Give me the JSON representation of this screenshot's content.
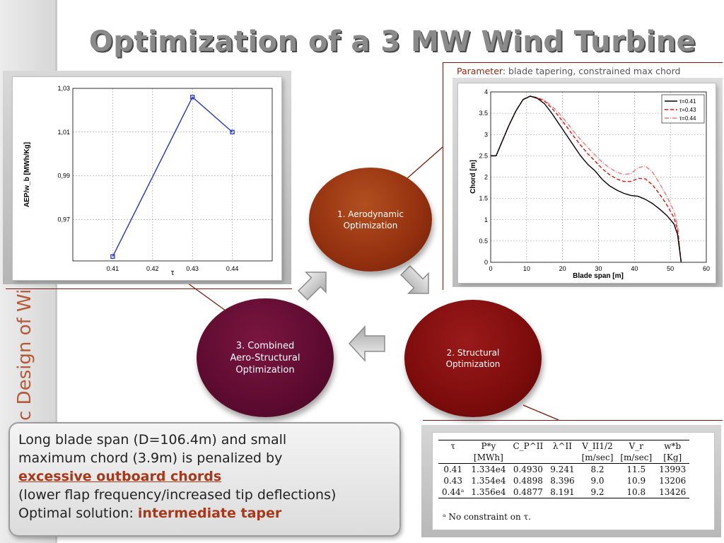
{
  "slide": {
    "title": "Optimization of a 3 MW Wind Turbine",
    "sidebar_text": "c Design of Wi",
    "parameter_label": "Parameter",
    "parameter_text": ": blade tapering, constrained max chord",
    "steps": [
      {
        "line1": "1. Aerodynamic",
        "line2": "Optimization",
        "line3": ""
      },
      {
        "line1": "2. Structural",
        "line2": "Optimization",
        "line3": ""
      },
      {
        "line1": "3. Combined",
        "line2": "Aero-Structural",
        "line3": "Optimization"
      }
    ],
    "textbox": {
      "line1": "Long blade span (D=106.4m) and small",
      "line2": "maximum chord (3.9m) is penalized by",
      "line3": "excessive outboard chords",
      "line4": "(lower flap frequency/increased tip deflections)",
      "line5_prefix": "Optimal solution: ",
      "line5_highlight": "intermediate taper"
    },
    "colors": {
      "title": "#8a8a8a",
      "accent": "#a8381a",
      "step1": "#93300f",
      "step2": "#7d0c0c",
      "step3": "#5e0b30"
    }
  },
  "table": {
    "headers": [
      "τ",
      "P*y",
      "C_P^II",
      "λ^II",
      "V_II1/2",
      "V_r",
      "w*b"
    ],
    "units": [
      "",
      "[MWh]",
      "",
      "",
      "[m/sec]",
      "[m/sec]",
      "[Kg]"
    ],
    "rows": [
      [
        "0.41",
        "1.334e4",
        "0.4930",
        "9.241",
        "8.2",
        "11.5",
        "13993"
      ],
      [
        "0.43",
        "1.354e4",
        "0.4898",
        "8.396",
        "9.0",
        "10.9",
        "13206"
      ],
      [
        "0.44ᵃ",
        "1.356e4",
        "0.4877",
        "8.191",
        "9.2",
        "10.8",
        "13426"
      ]
    ],
    "footnote": "ᵃ No constraint on τ."
  },
  "chart_data": [
    {
      "type": "line",
      "xlabel": "τ",
      "ylabel": "AEP/w_b [MWh/Kg]",
      "x": [
        0.41,
        0.43,
        0.44
      ],
      "xticks": [
        "0.41",
        "0.42",
        "0.43",
        "0.44"
      ],
      "yticks": [
        "0,97",
        "0,99",
        "1,01",
        "1,03"
      ],
      "xlim": [
        0.4,
        0.45
      ],
      "ylim": [
        0.951,
        1.03
      ],
      "grid": true,
      "series": [
        {
          "values": [
            0.953,
            1.026,
            1.01
          ],
          "color": "#2233cc"
        }
      ]
    },
    {
      "type": "line",
      "xlabel": "Blade span [m]",
      "ylabel": "Chord [m]",
      "xlim": [
        0,
        60
      ],
      "ylim": [
        0,
        4
      ],
      "xticks": [
        "0",
        "10",
        "20",
        "30",
        "40",
        "50",
        "60"
      ],
      "yticks": [
        "0",
        "0.5",
        "1",
        "1.5",
        "2",
        "2.5",
        "3",
        "3.5",
        "4"
      ],
      "grid": true,
      "legend": "top-right",
      "x": [
        0,
        1.5,
        3,
        5,
        7,
        9,
        11,
        13,
        15,
        17,
        19,
        21,
        23,
        25,
        27,
        29,
        31,
        33,
        35,
        37,
        39,
        41,
        43,
        45,
        47,
        49,
        51,
        52,
        53
      ],
      "series": [
        {
          "name": "τ=0.41",
          "color": "#000000",
          "dash": "solid",
          "values": [
            2.5,
            2.5,
            2.8,
            3.2,
            3.55,
            3.82,
            3.9,
            3.85,
            3.72,
            3.5,
            3.25,
            3.0,
            2.75,
            2.5,
            2.3,
            2.15,
            1.95,
            1.8,
            1.7,
            1.62,
            1.57,
            1.55,
            1.48,
            1.38,
            1.25,
            1.1,
            0.9,
            0.65,
            0.0
          ]
        },
        {
          "name": "τ=0.43",
          "color": "#dd1111",
          "dash": "dashed",
          "values": [
            2.5,
            2.5,
            2.8,
            3.2,
            3.55,
            3.82,
            3.9,
            3.86,
            3.78,
            3.62,
            3.42,
            3.2,
            2.97,
            2.75,
            2.55,
            2.38,
            2.2,
            2.06,
            1.96,
            1.9,
            1.9,
            1.97,
            1.96,
            1.82,
            1.6,
            1.35,
            1.05,
            0.75,
            0.0
          ]
        },
        {
          "name": "τ=0.44",
          "color": "#ee7777",
          "dash": "dashdot",
          "values": [
            2.5,
            2.5,
            2.8,
            3.2,
            3.55,
            3.82,
            3.9,
            3.87,
            3.8,
            3.67,
            3.5,
            3.3,
            3.08,
            2.88,
            2.7,
            2.52,
            2.35,
            2.22,
            2.12,
            2.06,
            2.08,
            2.22,
            2.26,
            2.12,
            1.85,
            1.55,
            1.2,
            0.85,
            0.0
          ]
        }
      ]
    }
  ]
}
